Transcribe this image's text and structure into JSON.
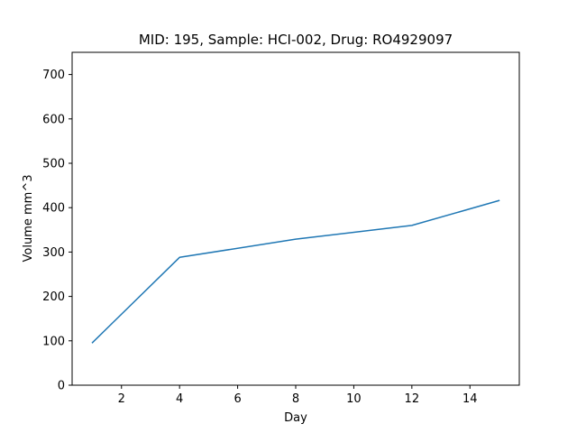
{
  "chart_data": {
    "type": "line",
    "title": "MID: 195, Sample: HCI-002, Drug: RO4929097",
    "xlabel": "Day",
    "ylabel": "Volume mm^3",
    "xlim": [
      0.3,
      15.7
    ],
    "ylim": [
      0,
      750
    ],
    "xticks": [
      2,
      4,
      6,
      8,
      10,
      12,
      14
    ],
    "yticks": [
      0,
      100,
      200,
      300,
      400,
      500,
      600,
      700
    ],
    "grid": false,
    "series": [
      {
        "color": "#1f77b4",
        "x": [
          1,
          4,
          8,
          12,
          15
        ],
        "y": [
          96,
          288,
          329,
          360,
          416
        ]
      }
    ]
  }
}
